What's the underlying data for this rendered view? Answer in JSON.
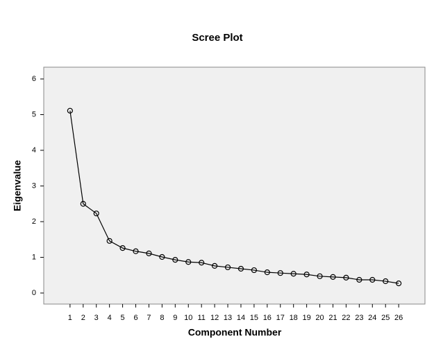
{
  "chart_data": {
    "type": "line",
    "title": "Scree Plot",
    "x_label": "Component Number",
    "y_label": "Eigenvalue",
    "x": [
      1,
      2,
      3,
      4,
      5,
      6,
      7,
      8,
      9,
      10,
      11,
      12,
      13,
      14,
      15,
      16,
      17,
      18,
      19,
      20,
      21,
      22,
      23,
      24,
      25,
      26
    ],
    "series": [
      {
        "color": "#000000",
        "values": [
          5.11,
          2.5,
          2.23,
          1.46,
          1.26,
          1.17,
          1.11,
          1.01,
          0.93,
          0.87,
          0.85,
          0.76,
          0.72,
          0.68,
          0.64,
          0.58,
          0.56,
          0.54,
          0.52,
          0.47,
          0.45,
          0.43,
          0.37,
          0.37,
          0.33,
          0.27
        ]
      }
    ],
    "xlim": [
      -1,
      28
    ],
    "xticks": [
      1,
      2,
      3,
      4,
      5,
      6,
      7,
      8,
      9,
      10,
      11,
      12,
      13,
      14,
      15,
      16,
      17,
      18,
      19,
      20,
      21,
      22,
      23,
      24,
      25,
      26
    ],
    "ylim": [
      -0.31,
      6.33
    ],
    "yticks": [
      0,
      1,
      2,
      3,
      4,
      5,
      6
    ],
    "grid": false,
    "plot_background": "#f0f0f0"
  }
}
